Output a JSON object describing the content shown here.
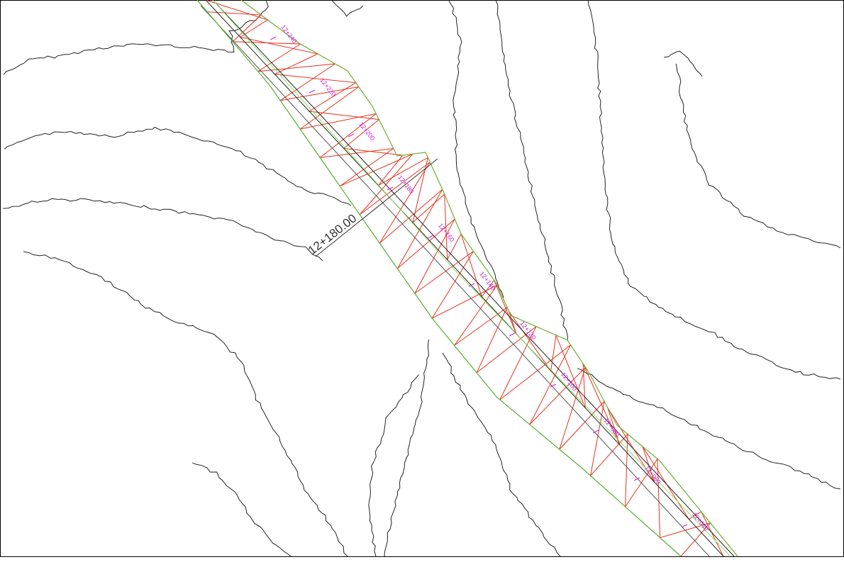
{
  "station_labels": [
    "12+240",
    "12+220",
    "12+200",
    "12+180",
    "12+160",
    "12+140",
    "12+120",
    "12+100",
    "12+080",
    "12+060",
    "12+040"
  ],
  "callout": "12+180.00"
}
